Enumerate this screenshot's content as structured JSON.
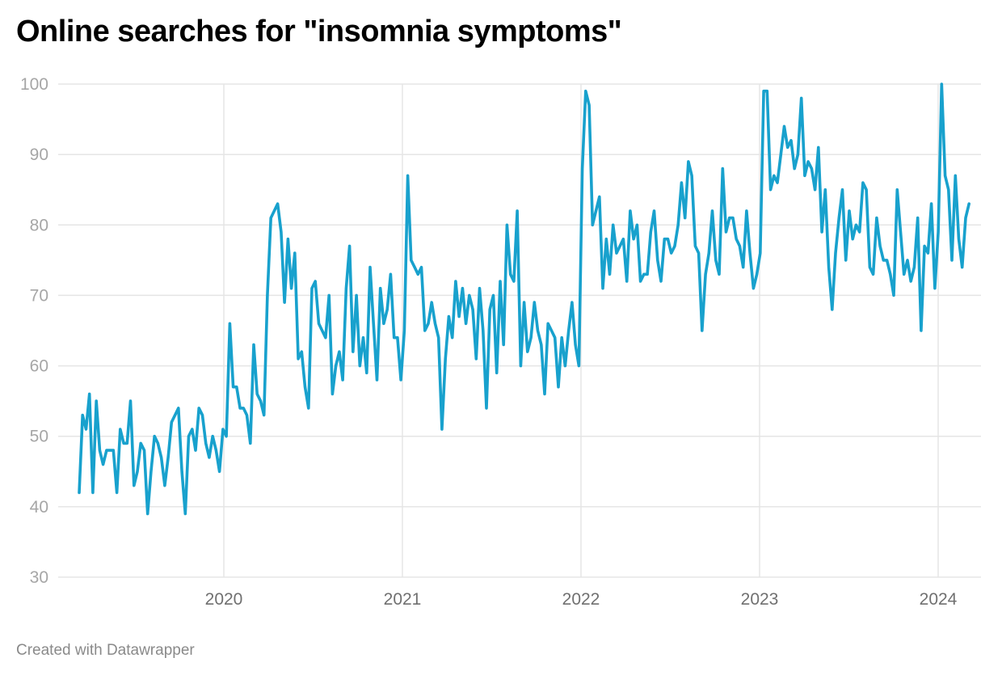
{
  "header": {
    "title": "Online searches for \"insomnia symptoms\""
  },
  "footer": {
    "credit": "Created with Datawrapper"
  },
  "colors": {
    "line": "#18a1cd",
    "grid": "#e5e5e5",
    "ytick": "#a6a6a6",
    "xtick": "#707070"
  },
  "chart_data": {
    "type": "line",
    "title": "Online searches for \"insomnia symptoms\"",
    "xlabel": "",
    "ylabel": "",
    "ylim": [
      30,
      100
    ],
    "xlim": [
      2019.17,
      2024.2
    ],
    "yticks": [
      "30",
      "40",
      "50",
      "60",
      "70",
      "80",
      "90",
      "100"
    ],
    "xticks": [
      "2020",
      "2021",
      "2022",
      "2023",
      "2024"
    ],
    "grid": true,
    "x_start": 2019.19,
    "x_step_weeks": 1,
    "series": [
      {
        "name": "insomnia symptoms",
        "values": [
          42,
          53,
          51,
          56,
          42,
          55,
          48,
          46,
          48,
          48,
          48,
          42,
          51,
          49,
          49,
          55,
          43,
          45,
          49,
          48,
          39,
          45,
          50,
          49,
          47,
          43,
          47,
          52,
          53,
          54,
          45,
          39,
          50,
          51,
          48,
          54,
          53,
          49,
          47,
          50,
          48,
          45,
          51,
          50,
          66,
          57,
          57,
          54,
          54,
          53,
          49,
          63,
          56,
          55,
          53,
          70,
          81,
          82,
          83,
          79,
          69,
          78,
          71,
          76,
          61,
          62,
          57,
          54,
          71,
          72,
          66,
          65,
          64,
          70,
          56,
          60,
          62,
          58,
          71,
          77,
          62,
          70,
          60,
          64,
          59,
          74,
          66,
          58,
          71,
          66,
          68,
          73,
          64,
          64,
          58,
          65,
          87,
          75,
          74,
          73,
          74,
          65,
          66,
          69,
          66,
          64,
          51,
          61,
          67,
          64,
          72,
          67,
          71,
          66,
          70,
          68,
          61,
          71,
          65,
          54,
          68,
          70,
          59,
          72,
          63,
          80,
          73,
          72,
          82,
          60,
          69,
          62,
          64,
          69,
          65,
          63,
          56,
          66,
          65,
          64,
          57,
          64,
          60,
          65,
          69,
          63,
          60,
          88,
          99,
          97,
          80,
          82,
          84,
          71,
          78,
          73,
          80,
          76,
          77,
          78,
          72,
          82,
          78,
          80,
          72,
          73,
          73,
          79,
          82,
          75,
          72,
          78,
          78,
          76,
          77,
          80,
          86,
          81,
          89,
          87,
          77,
          76,
          65,
          73,
          76,
          82,
          75,
          73,
          88,
          79,
          81,
          81,
          78,
          77,
          74,
          82,
          76,
          71,
          73,
          76,
          99,
          99,
          85,
          87,
          86,
          90,
          94,
          91,
          92,
          88,
          90,
          98,
          87,
          89,
          88,
          85,
          91,
          79,
          85,
          74,
          68,
          76,
          81,
          85,
          75,
          82,
          78,
          80,
          79,
          86,
          85,
          74,
          73,
          81,
          77,
          75,
          75,
          73,
          70,
          85,
          79,
          73,
          75,
          72,
          74,
          81,
          65,
          77,
          76,
          83,
          71,
          79,
          100,
          87,
          85,
          75,
          87,
          78,
          74,
          81,
          83
        ]
      }
    ]
  }
}
